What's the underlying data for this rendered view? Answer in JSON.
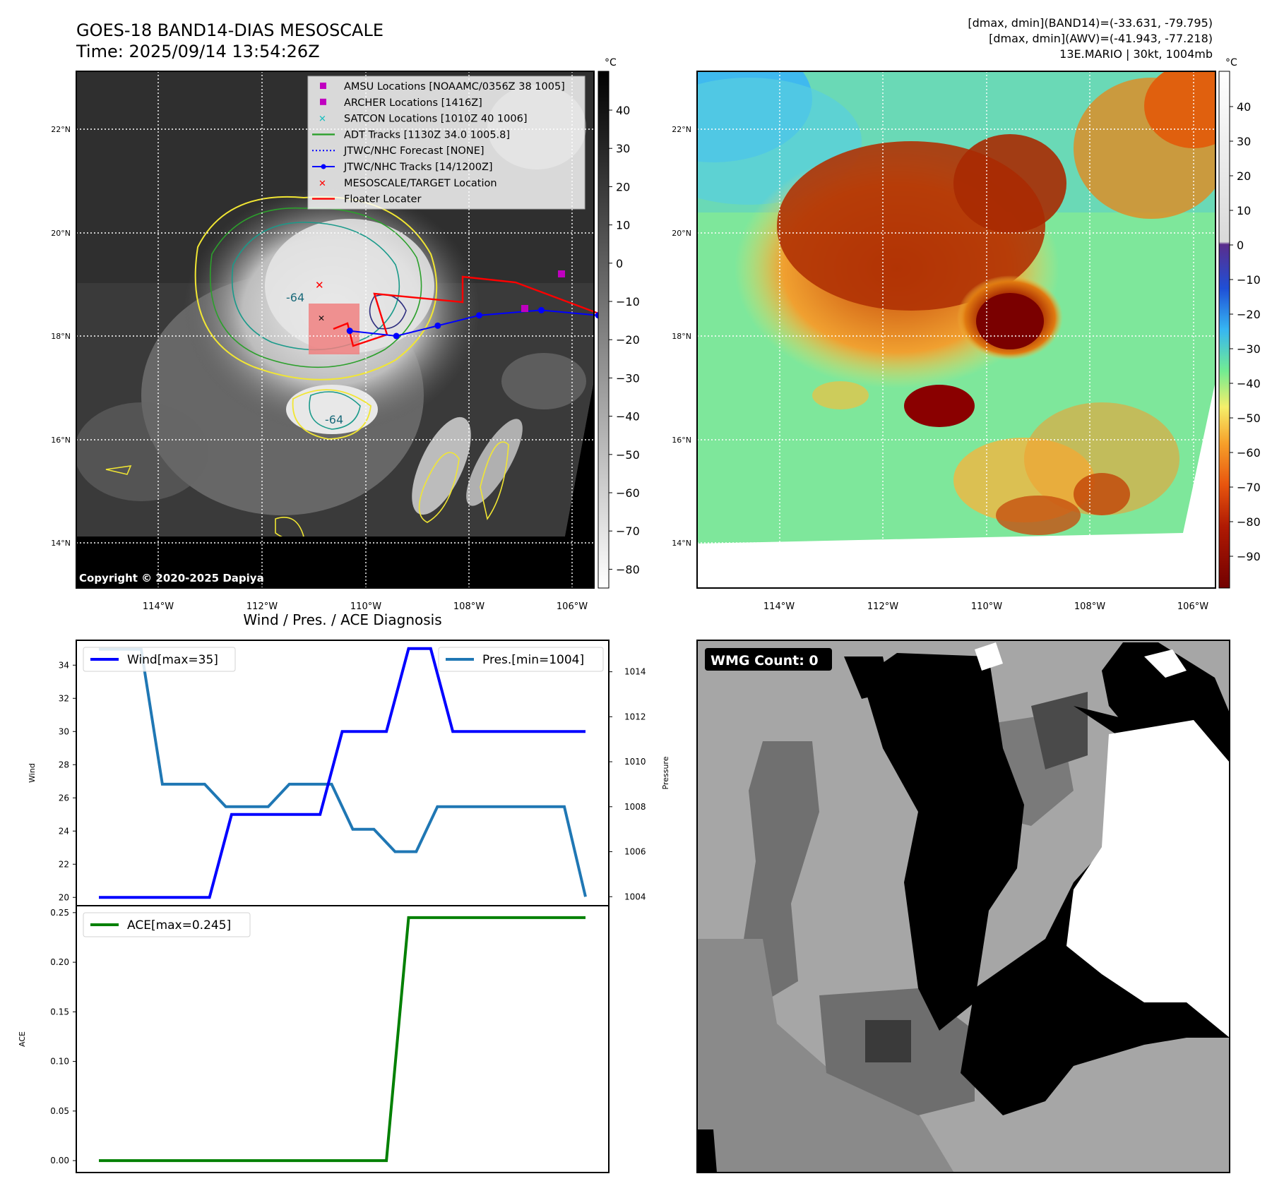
{
  "header": {
    "title_line1": "GOES-18 BAND14-DIAS MESOSCALE",
    "title_line2": "Time: 2025/09/14 13:54:26Z",
    "stats_line1": "[dmax, dmin](BAND14)=(-33.631, -79.795)",
    "stats_line2": "[dmax, dmin](AWV)=(-41.943, -77.218)",
    "stats_line3": "13E.MARIO | 30kt, 1004mb"
  },
  "map_axes": {
    "lon_ticks": [
      "114°W",
      "112°W",
      "110°W",
      "108°W",
      "106°W"
    ],
    "lat_ticks": [
      "22°N",
      "20°N",
      "18°N",
      "16°N",
      "14°N"
    ]
  },
  "ir_panel": {
    "copyright": "Copyright © 2020-2025 Dapiya",
    "contour_label": "-64",
    "colorbar_unit": "°C",
    "colorbar_ticks": [
      "40",
      "30",
      "20",
      "10",
      "0",
      "−10",
      "−20",
      "−30",
      "−40",
      "−50",
      "−60",
      "−70",
      "−80"
    ],
    "legend": [
      {
        "label": "AMSU Locations [NOAAMC/0356Z 38 1005]",
        "symbol": "square",
        "color": "#c000c0"
      },
      {
        "label": "ARCHER Locations [1416Z]",
        "symbol": "square",
        "color": "#c000c0"
      },
      {
        "label": "SATCON Locations [1010Z 40 1006]",
        "symbol": "x",
        "color": "#19bfbf"
      },
      {
        "label": "ADT Tracks [1130Z 34.0 1005.8]",
        "symbol": "line",
        "color": "#2ca02c"
      },
      {
        "label": "JTWC/NHC Forecast [NONE]",
        "symbol": "dotted",
        "color": "#0000ff"
      },
      {
        "label": "JTWC/NHC Tracks [14/1200Z]",
        "symbol": "line-dot",
        "color": "#0000ff"
      },
      {
        "label": "MESOSCALE/TARGET Location",
        "symbol": "x",
        "color": "#ff0000"
      },
      {
        "label": "Floater Locater",
        "symbol": "line",
        "color": "#ff0000"
      }
    ],
    "track_points": [
      {
        "lon": -110.3,
        "lat": 18.1
      },
      {
        "lon": -109.4,
        "lat": 18.0
      },
      {
        "lon": -108.6,
        "lat": 18.2
      },
      {
        "lon": -107.8,
        "lat": 18.4
      },
      {
        "lon": -106.6,
        "lat": 18.5
      },
      {
        "lon": -105.5,
        "lat": 18.4
      }
    ]
  },
  "awv_panel": {
    "colorbar_unit": "°C",
    "colorbar_ticks": [
      "40",
      "30",
      "20",
      "10",
      "0",
      "−10",
      "−20",
      "−30",
      "−40",
      "−50",
      "−60",
      "−70",
      "−80",
      "−90"
    ]
  },
  "wmg_panel": {
    "badge": "WMG Count: 0"
  },
  "chart_data": [
    {
      "type": "line",
      "title": "Wind / Pres. / ACE Diagnosis",
      "ylabel": "Wind",
      "ylim": [
        19.5,
        35.5
      ],
      "yticks": [
        "20",
        "22",
        "24",
        "26",
        "28",
        "30",
        "32",
        "34"
      ],
      "series": [
        {
          "name": "Wind[max=35]",
          "color": "#0000ff",
          "values": [
            20,
            20,
            20,
            20,
            20,
            20,
            25,
            25,
            25,
            25,
            25,
            30,
            30,
            30,
            35,
            35,
            30,
            30,
            30,
            30,
            30,
            30,
            30
          ]
        }
      ]
    },
    {
      "type": "line",
      "ylabel": "Pressure",
      "ylim": [
        1003.6,
        1015.4
      ],
      "yticks": [
        "1004",
        "1006",
        "1008",
        "1010",
        "1012",
        "1014"
      ],
      "series": [
        {
          "name": "Pres.[min=1004]",
          "color": "#1f77b4",
          "values": [
            1015,
            1015,
            1015,
            1009,
            1009,
            1009,
            1008,
            1008,
            1008,
            1009,
            1009,
            1009,
            1007,
            1007,
            1006,
            1006,
            1008,
            1008,
            1008,
            1008,
            1008,
            1008,
            1008,
            1004
          ]
        }
      ]
    },
    {
      "type": "line",
      "ylabel": "ACE",
      "ylim": [
        -0.012,
        0.257
      ],
      "yticks": [
        "0.00",
        "0.05",
        "0.10",
        "0.15",
        "0.20",
        "0.25"
      ],
      "series": [
        {
          "name": "ACE[max=0.245]",
          "color": "#008000",
          "values": [
            0,
            0,
            0,
            0,
            0,
            0,
            0,
            0,
            0,
            0,
            0,
            0,
            0,
            0,
            0.245,
            0.245,
            0.245,
            0.245,
            0.245,
            0.245,
            0.245,
            0.245,
            0.245
          ]
        }
      ]
    }
  ]
}
